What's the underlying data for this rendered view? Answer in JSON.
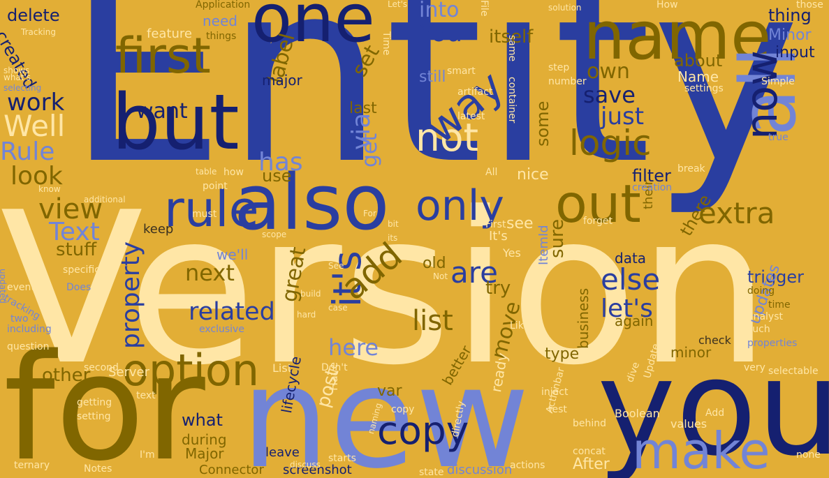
{
  "palette": {
    "background": "#e2ae36",
    "dark_navy": "#152070",
    "royal_blue": "#2a3ea0",
    "periwinkle": "#7284d6",
    "olive_brown": "#806600",
    "cream": "#ffe6a6",
    "dark_gray": "#3a3020"
  },
  "words": [
    "Entity",
    "Version",
    "new",
    "you",
    "for",
    "name",
    "one",
    "but",
    "also",
    "all",
    "first",
    "rule",
    "option",
    "now",
    "out",
    "only",
    "make",
    "logic",
    "not",
    "it's",
    "copy",
    "add",
    "related",
    "Well",
    "extra",
    "else",
    "Rule",
    "view",
    "look",
    "are",
    "way",
    "list",
    "let's",
    "property",
    "save",
    "Text",
    "You",
    "has",
    "just",
    "via",
    "here",
    "label",
    "work",
    "set",
    "want",
    "next",
    "delete",
    "created",
    "into",
    "own",
    "about",
    "itself",
    "thing",
    "filter",
    "Minor",
    "input",
    "great",
    "trigger",
    "stuff",
    "other",
    "post",
    "what",
    "type",
    "move",
    "sure",
    "try",
    "see",
    "keep",
    "old",
    "some",
    "use",
    "get",
    "still",
    "during",
    "major",
    "last",
    "updates",
    "Name",
    "we'll",
    "business",
    "there",
    "data",
    "Major",
    "again",
    "check",
    "minor",
    "feature",
    "need",
    "screenshot",
    "discussion",
    "After",
    "Connector",
    "leave",
    "var",
    "ready",
    "better",
    "Server",
    "List",
    "lifecycle",
    "nice",
    "Yes",
    "It's",
    "ItemId",
    "their",
    "Boolean",
    "values",
    "selectable",
    "properties",
    "settings",
    "analyst",
    "doing",
    "time",
    "such",
    "exclusive",
    "including",
    "tracking",
    "event",
    "specific",
    "updated",
    "Does",
    "question",
    "two",
    "getting",
    "setting",
    "second",
    "text",
    "Notes",
    "ternary",
    "I'm",
    "Have",
    "Don't",
    "Like",
    "inject",
    "test",
    "concat",
    "state",
    "actions",
    "dive",
    "Update",
    "Add",
    "behind",
    "Actionbar",
    "naming",
    "directly",
    "starts",
    "discuss",
    "Simple",
    "very",
    "none",
    "Application",
    "Tracking",
    "Let's",
    "solution",
    "File",
    "How",
    "same",
    "step",
    "container",
    "number",
    "latest",
    "those",
    "true",
    "smart",
    "artifact",
    "Time",
    "things",
    "shows",
    "selecting",
    "what's",
    "how",
    "point",
    "must",
    "additional",
    "know",
    "table",
    "All",
    "creation",
    "forget",
    "break",
    "First",
    "Not",
    "For",
    "scope",
    "bit",
    "its",
    "build",
    "hard",
    "See",
    "case",
    "copy"
  ]
}
